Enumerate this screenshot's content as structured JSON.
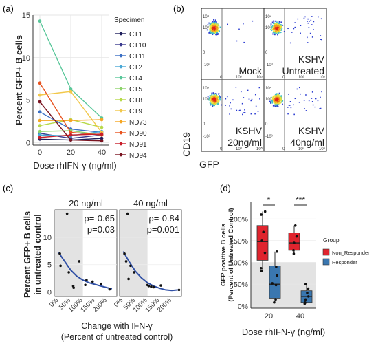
{
  "figure": {
    "panel_labels": [
      "(a)",
      "(b)",
      "(c)",
      "(d)"
    ]
  },
  "chart_data": [
    {
      "panel": "(a)",
      "type": "line",
      "xlabel": "Dose rhIFN-γ (ng/ml)",
      "ylabel": "Percent GFP+ B cells",
      "x": [
        0,
        20,
        40
      ],
      "xticks": [
        "0",
        "20",
        "40"
      ],
      "ylim": [
        -0.3,
        15
      ],
      "yticks": [
        0,
        5,
        10,
        15
      ],
      "legend_title": "Specimen",
      "grid": true,
      "series": [
        {
          "name": "CT1",
          "color": "#1f1f5c",
          "values": [
            0.4,
            0.3,
            0.5
          ]
        },
        {
          "name": "CT10",
          "color": "#3a3a8f",
          "values": [
            1.1,
            0.5,
            0.9
          ]
        },
        {
          "name": "CT11",
          "color": "#3a6fc4",
          "values": [
            3.6,
            1.6,
            1.2
          ]
        },
        {
          "name": "CT2",
          "color": "#4aa8d6",
          "values": [
            0.9,
            0.8,
            1.3
          ]
        },
        {
          "name": "CT4",
          "color": "#59c79a",
          "values": [
            14.3,
            6.3,
            2.9
          ]
        },
        {
          "name": "CT5",
          "color": "#8dd36b",
          "values": [
            1.3,
            1.4,
            0.9
          ]
        },
        {
          "name": "CT8",
          "color": "#b7d94a",
          "values": [
            2.0,
            2.7,
            1.8
          ]
        },
        {
          "name": "CT9",
          "color": "#f2c84b",
          "values": [
            5.6,
            6.0,
            1.2
          ]
        },
        {
          "name": "ND73",
          "color": "#f5a623",
          "values": [
            2.6,
            2.6,
            2.7
          ]
        },
        {
          "name": "ND90",
          "color": "#e8531f",
          "values": [
            7.0,
            1.2,
            0.9
          ]
        },
        {
          "name": "ND91",
          "color": "#c81e2a",
          "values": [
            0.6,
            0.9,
            1.0
          ]
        },
        {
          "name": "ND94",
          "color": "#7a1420",
          "values": [
            4.8,
            0.3,
            0.2
          ]
        }
      ]
    },
    {
      "panel": "(b)",
      "type": "scatter",
      "xlabel": "GFP",
      "ylabel": "CD19",
      "cells": [
        {
          "label_lines": [
            "Mock"
          ]
        },
        {
          "label_lines": [
            "KSHV",
            "Untreated"
          ]
        },
        {
          "label_lines": [
            "KSHV",
            "20ng/ml"
          ]
        },
        {
          "label_lines": [
            "KSHV",
            "40ng/ml"
          ]
        }
      ],
      "xtick_labels": [
        "0",
        "10³",
        "10⁵"
      ],
      "ytick_labels": [
        "10⁴",
        "10³",
        "0",
        "-10³"
      ]
    },
    {
      "panel": "(c)",
      "type": "scatter",
      "xlabel_lines": [
        "Change with IFN-γ",
        "(Percent of untreated control)"
      ],
      "ylabel_lines": [
        "Percent GFP+ B cells",
        "in untreated control"
      ],
      "xlim": [
        -15,
        240
      ],
      "xticks": [
        "0%",
        "50%",
        "100%",
        "150%",
        "200%"
      ],
      "ylim": [
        -0.8,
        15
      ],
      "yticks": [
        0,
        5,
        10
      ],
      "shaded_x": [
        -15,
        100
      ],
      "facets": [
        {
          "title": "20 ng/ml",
          "annotation": [
            "ρ=-0.65",
            "p=0.03"
          ],
          "points": [
            [
              5,
              7.0
            ],
            [
              8,
              4.8
            ],
            [
              35,
              14.3
            ],
            [
              42,
              3.6
            ],
            [
              60,
              1.1
            ],
            [
              62,
              0.8
            ],
            [
              85,
              5.6
            ],
            [
              110,
              1.3
            ],
            [
              115,
              2.2
            ],
            [
              140,
              1.9
            ],
            [
              175,
              1.5
            ],
            [
              210,
              0.5
            ]
          ],
          "fit": [
            [
              0,
              7.2
            ],
            [
              25,
              5.6
            ],
            [
              50,
              4.0
            ],
            [
              75,
              2.9
            ],
            [
              100,
              2.2
            ],
            [
              125,
              1.7
            ],
            [
              150,
              1.4
            ],
            [
              175,
              1.1
            ],
            [
              200,
              0.8
            ],
            [
              220,
              0.6
            ]
          ]
        },
        {
          "title": "40 ng/ml",
          "annotation": [
            "ρ=-0.84",
            "p=0.001"
          ],
          "points": [
            [
              5,
              7.0
            ],
            [
              12,
              5.6
            ],
            [
              18,
              14.3
            ],
            [
              22,
              2.4
            ],
            [
              30,
              4.8
            ],
            [
              45,
              3.6
            ],
            [
              100,
              1.3
            ],
            [
              105,
              1.1
            ],
            [
              115,
              1.0
            ],
            [
              125,
              0.9
            ],
            [
              155,
              1.2
            ],
            [
              230,
              0.4
            ]
          ],
          "fit": [
            [
              0,
              7.4
            ],
            [
              25,
              5.5
            ],
            [
              50,
              3.8
            ],
            [
              75,
              2.6
            ],
            [
              100,
              1.7
            ],
            [
              125,
              1.1
            ],
            [
              150,
              0.7
            ],
            [
              175,
              0.4
            ],
            [
              200,
              0.3
            ],
            [
              225,
              0.4
            ]
          ]
        }
      ]
    },
    {
      "panel": "(d)",
      "type": "box",
      "xlabel": "Dose rhIFN-γ (ng/ml)",
      "ylabel_lines": [
        "GFP positive B cells",
        "(Percent of Untreated Control)"
      ],
      "categories": [
        "20",
        "40"
      ],
      "ylim": [
        -5,
        240
      ],
      "yticks": [
        "0%",
        "50%",
        "100%",
        "150%",
        "200%"
      ],
      "ytick_values": [
        0,
        50,
        100,
        150,
        200
      ],
      "shaded_below": 100,
      "legend_title": "Group",
      "significance": [
        "*",
        "***"
      ],
      "series": [
        {
          "name": "Non_Responder",
          "color": "#e0242e",
          "boxes": [
            {
              "q1": 105,
              "median": 148,
              "q3": 185,
              "wmin": 80,
              "wmax": 217,
              "points": [
                80,
                87,
                122,
                150,
                170,
                210,
                217
              ]
            },
            {
              "q1": 128,
              "median": 145,
              "q3": 168,
              "wmin": 120,
              "wmax": 185,
              "points": [
                120,
                128,
                145,
                160,
                185
              ]
            }
          ]
        },
        {
          "name": "Responder",
          "color": "#3a77b0",
          "boxes": [
            {
              "q1": 18,
              "median": 50,
              "q3": 92,
              "wmin": 8,
              "wmax": 125,
              "points": [
                8,
                15,
                48,
                52,
                70,
                90,
                125
              ]
            },
            {
              "q1": 8,
              "median": 22,
              "q3": 35,
              "wmin": 5,
              "wmax": 50,
              "points": [
                5,
                8,
                15,
                22,
                30,
                40,
                50
              ]
            }
          ]
        }
      ]
    }
  ]
}
